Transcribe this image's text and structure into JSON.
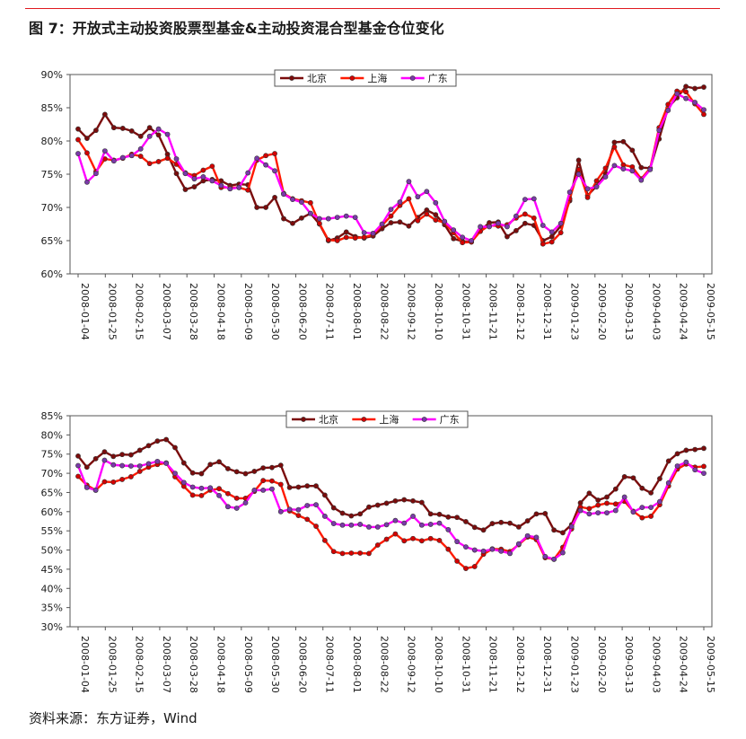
{
  "figure": {
    "title": "图 7：开放式主动投资股票型基金&主动投资混合型基金仓位变化",
    "source": "资料来源：东方证券，Wind"
  },
  "chart_data": [
    {
      "type": "line",
      "y_unit": "%",
      "ylim": [
        60,
        90
      ],
      "yticks": [
        60,
        65,
        70,
        75,
        80,
        85,
        90
      ],
      "grid": false,
      "legend_position": "top-center",
      "x_tick_labels": [
        "2008-01-04",
        "2008-01-25",
        "2008-02-15",
        "2008-03-07",
        "2008-03-28",
        "2008-04-18",
        "2008-05-09",
        "2008-05-30",
        "2008-06-20",
        "2008-07-11",
        "2008-08-01",
        "2008-08-22",
        "2008-09-12",
        "2008-10-10",
        "2008-10-31",
        "2008-11-21",
        "2008-12-12",
        "2008-12-31",
        "2009-01-23",
        "2009-02-20",
        "2009-03-13",
        "2009-04-03",
        "2009-04-24",
        "2009-05-15"
      ],
      "series": [
        {
          "name": "北京",
          "color": "#7b0c0c",
          "marker_fill": "#7b0c0c",
          "values": [
            81.8,
            80.4,
            81.6,
            84.0,
            82.0,
            81.9,
            81.5,
            80.7,
            82.0,
            80.9,
            78.0,
            75.1,
            72.7,
            73.1,
            74.0,
            74.2,
            74.0,
            73.3,
            73.5,
            73.4,
            70.0,
            70.0,
            71.5,
            68.3,
            67.6,
            68.4,
            69.1,
            67.5,
            65.0,
            65.4,
            66.3,
            65.6,
            65.4,
            65.7,
            66.8,
            67.7,
            67.8,
            67.2,
            68.5,
            69.6,
            68.9,
            67.4,
            65.3,
            64.9,
            64.8,
            66.5,
            67.7,
            67.8,
            65.6,
            66.5,
            67.6,
            67.3,
            65.0,
            65.6,
            67.2,
            71.0,
            77.1,
            71.8,
            73.2,
            75.1,
            79.8,
            79.9,
            78.6,
            76.0,
            75.9,
            80.3,
            85.0,
            86.5,
            88.2,
            87.9,
            88.1
          ]
        },
        {
          "name": "上海",
          "color": "#ff1a00",
          "marker_fill": "#d40000",
          "values": [
            80.2,
            78.2,
            75.4,
            77.3,
            77.1,
            77.4,
            78.0,
            77.7,
            76.6,
            76.9,
            77.4,
            76.5,
            75.2,
            74.8,
            75.6,
            76.2,
            73.0,
            73.0,
            73.0,
            72.6,
            77.1,
            77.8,
            78.1,
            72.1,
            71.3,
            71.0,
            70.7,
            67.6,
            65.1,
            65.0,
            65.5,
            65.4,
            65.5,
            65.9,
            67.3,
            68.7,
            70.3,
            71.3,
            68.0,
            69.0,
            68.1,
            67.7,
            66.2,
            64.7,
            64.8,
            66.4,
            67.3,
            67.2,
            67.4,
            68.4,
            69.0,
            68.4,
            64.5,
            64.8,
            66.2,
            71.3,
            75.7,
            71.5,
            74.0,
            75.9,
            79.1,
            76.4,
            76.1,
            74.3,
            75.9,
            82.0,
            85.5,
            87.5,
            87.4,
            85.6,
            84.0
          ]
        },
        {
          "name": "广东",
          "color": "#ff00ff",
          "marker_fill": "#7a3aa8",
          "values": [
            78.1,
            73.8,
            75.1,
            78.5,
            77.0,
            77.5,
            77.8,
            78.8,
            80.7,
            81.8,
            81.0,
            77.3,
            75.1,
            74.3,
            74.6,
            74.0,
            73.3,
            72.8,
            73.0,
            75.2,
            77.4,
            76.4,
            75.5,
            72.0,
            71.2,
            70.8,
            69.1,
            68.3,
            68.3,
            68.5,
            68.7,
            68.5,
            66.2,
            66.1,
            67.5,
            69.7,
            70.8,
            73.9,
            71.6,
            72.4,
            70.7,
            67.9,
            66.6,
            65.5,
            65.0,
            67.1,
            67.1,
            67.6,
            67.1,
            68.7,
            71.2,
            71.3,
            67.3,
            66.3,
            67.6,
            72.3,
            75.0,
            72.8,
            73.1,
            74.6,
            76.3,
            75.8,
            75.5,
            74.1,
            75.7,
            81.6,
            84.6,
            87.1,
            86.4,
            85.8,
            84.7
          ]
        }
      ]
    },
    {
      "type": "line",
      "y_unit": "%",
      "ylim": [
        30,
        85
      ],
      "yticks": [
        30,
        35,
        40,
        45,
        50,
        55,
        60,
        65,
        70,
        75,
        80,
        85
      ],
      "grid": false,
      "legend_position": "top-center",
      "x_tick_labels": [
        "2008-01-04",
        "2008-01-25",
        "2008-02-15",
        "2008-03-07",
        "2008-03-28",
        "2008-04-18",
        "2008-05-09",
        "2008-05-30",
        "2008-06-20",
        "2008-07-11",
        "2008-08-01",
        "2008-08-22",
        "2008-09-12",
        "2008-10-10",
        "2008-10-31",
        "2008-11-21",
        "2008-12-12",
        "2008-12-31",
        "2009-01-23",
        "2009-02-20",
        "2009-03-13",
        "2009-04-03",
        "2009-04-24",
        "2009-05-15"
      ],
      "series": [
        {
          "name": "北京",
          "color": "#7b0c0c",
          "marker_fill": "#7b0c0c",
          "values": [
            74.5,
            71.6,
            73.8,
            75.6,
            74.4,
            74.9,
            74.8,
            76.0,
            77.2,
            78.4,
            78.8,
            76.7,
            72.7,
            70.1,
            69.9,
            72.3,
            73.0,
            71.2,
            70.4,
            69.9,
            70.5,
            71.4,
            71.5,
            72.1,
            66.3,
            66.4,
            66.7,
            66.7,
            64.3,
            61.0,
            59.6,
            58.9,
            59.4,
            61.2,
            61.7,
            62.2,
            62.8,
            63.1,
            62.8,
            62.4,
            59.4,
            59.3,
            58.6,
            58.5,
            57.4,
            55.9,
            55.2,
            56.9,
            57.2,
            57.0,
            56.0,
            57.6,
            59.4,
            59.5,
            55.2,
            54.5,
            56.6,
            62.3,
            64.8,
            63.0,
            63.8,
            65.9,
            69.1,
            68.8,
            66.1,
            64.9,
            68.6,
            73.2,
            75.1,
            76.0,
            76.2,
            76.5
          ]
        },
        {
          "name": "上海",
          "color": "#ff1a00",
          "marker_fill": "#d40000",
          "values": [
            69.2,
            66.9,
            65.6,
            67.8,
            67.7,
            68.4,
            69.1,
            70.5,
            71.6,
            72.3,
            72.7,
            69.1,
            66.6,
            64.3,
            64.2,
            65.6,
            66.0,
            64.7,
            63.5,
            63.5,
            65.3,
            68.1,
            68.0,
            67.1,
            60.2,
            59.0,
            58.0,
            56.2,
            52.5,
            49.6,
            49.1,
            49.2,
            49.2,
            49.1,
            51.3,
            52.8,
            54.2,
            52.4,
            53.0,
            52.4,
            53.0,
            52.5,
            50.2,
            47.1,
            45.2,
            45.7,
            48.9,
            50.3,
            50.2,
            49.6,
            51.4,
            53.4,
            52.7,
            48.0,
            47.6,
            50.7,
            55.5,
            61.2,
            60.8,
            61.7,
            62.2,
            62.0,
            62.7,
            60.1,
            58.4,
            58.8,
            61.8,
            66.7,
            71.1,
            72.4,
            71.6,
            71.8
          ]
        },
        {
          "name": "广东",
          "color": "#ff00ff",
          "marker_fill": "#7a3aa8",
          "values": [
            72.0,
            66.3,
            65.6,
            73.4,
            72.2,
            72.0,
            71.9,
            71.9,
            72.5,
            73.1,
            72.6,
            70.0,
            67.6,
            66.4,
            66.1,
            66.2,
            64.2,
            61.3,
            60.9,
            62.3,
            65.6,
            65.6,
            65.9,
            60.0,
            60.6,
            60.5,
            61.6,
            61.8,
            58.8,
            56.9,
            56.5,
            56.5,
            56.7,
            56.0,
            56.0,
            56.6,
            57.7,
            57.0,
            58.8,
            56.5,
            56.7,
            57.0,
            55.3,
            52.2,
            50.8,
            50.0,
            49.7,
            50.2,
            49.7,
            49.1,
            51.6,
            53.7,
            53.3,
            48.3,
            47.6,
            49.3,
            56.1,
            60.3,
            59.4,
            59.7,
            59.7,
            60.3,
            63.8,
            59.9,
            61.1,
            61.1,
            62.6,
            67.5,
            71.9,
            72.9,
            70.9,
            70.0
          ]
        }
      ]
    }
  ]
}
